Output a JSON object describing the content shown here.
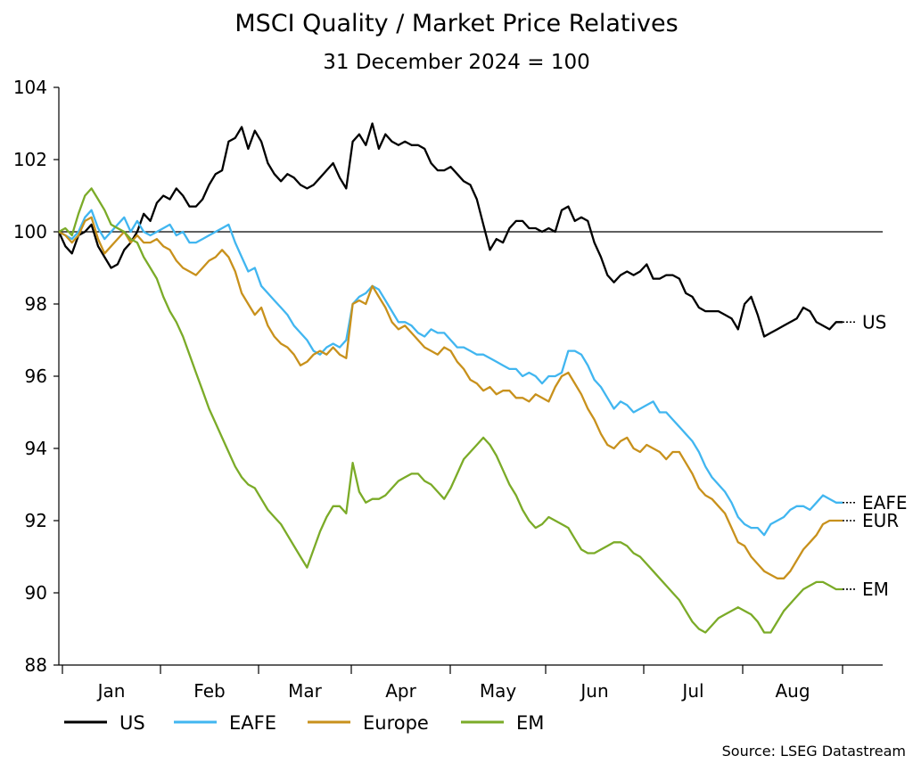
{
  "chart_data": {
    "type": "line",
    "title": "MSCI Quality / Market Price Relatives",
    "subtitle": "31 December 2024 = 100",
    "xlabel": "",
    "ylabel": "",
    "ylim": [
      88,
      104
    ],
    "yticks": [
      "88",
      "90",
      "92",
      "94",
      "96",
      "98",
      "100",
      "102",
      "104"
    ],
    "reference_line": 100,
    "months": [
      "Jan",
      "Feb",
      "Mar",
      "Apr",
      "May",
      "Jun",
      "Jul",
      "Aug"
    ],
    "legend_placement": "bottom",
    "source": "Source: LSEG Datastream",
    "series": [
      {
        "name": "US",
        "end_label": "US",
        "color": "#000000",
        "values": [
          100.0,
          99.6,
          99.4,
          99.9,
          100.0,
          100.2,
          99.6,
          99.3,
          99.0,
          99.1,
          99.5,
          99.7,
          100.0,
          100.5,
          100.3,
          100.8,
          101.0,
          100.9,
          101.2,
          101.0,
          100.7,
          100.7,
          100.9,
          101.3,
          101.6,
          101.7,
          102.5,
          102.6,
          102.9,
          102.3,
          102.8,
          102.5,
          101.9,
          101.6,
          101.4,
          101.6,
          101.5,
          101.3,
          101.2,
          101.3,
          101.5,
          101.7,
          101.9,
          101.5,
          101.2,
          102.5,
          102.7,
          102.4,
          103.0,
          102.3,
          102.7,
          102.5,
          102.4,
          102.5,
          102.4,
          102.4,
          102.3,
          101.9,
          101.7,
          101.7,
          101.8,
          101.6,
          101.4,
          101.3,
          100.9,
          100.2,
          99.5,
          99.8,
          99.7,
          100.1,
          100.3,
          100.3,
          100.1,
          100.1,
          100.0,
          100.1,
          100.0,
          100.6,
          100.7,
          100.3,
          100.4,
          100.3,
          99.7,
          99.3,
          98.8,
          98.6,
          98.8,
          98.9,
          98.8,
          98.9,
          99.1,
          98.7,
          98.7,
          98.8,
          98.8,
          98.7,
          98.3,
          98.2,
          97.9,
          97.8,
          97.8,
          97.8,
          97.7,
          97.6,
          97.3,
          98.0,
          98.2,
          97.7,
          97.1,
          97.2,
          97.3,
          97.4,
          97.5,
          97.6,
          97.9,
          97.8,
          97.5,
          97.4,
          97.3,
          97.5,
          97.5
        ]
      },
      {
        "name": "EAFE",
        "end_label": "EAFE",
        "color": "#41b6f0",
        "values": [
          100.0,
          99.9,
          99.8,
          100.0,
          100.4,
          100.6,
          100.1,
          99.8,
          100.0,
          100.2,
          100.4,
          100.0,
          100.3,
          100.0,
          99.9,
          100.0,
          100.1,
          100.2,
          99.9,
          100.0,
          99.7,
          99.7,
          99.8,
          99.9,
          100.0,
          100.1,
          100.2,
          99.7,
          99.3,
          98.9,
          99.0,
          98.5,
          98.3,
          98.1,
          97.9,
          97.7,
          97.4,
          97.2,
          97.0,
          96.7,
          96.6,
          96.8,
          96.9,
          96.8,
          97.0,
          98.0,
          98.2,
          98.3,
          98.5,
          98.4,
          98.1,
          97.8,
          97.5,
          97.5,
          97.4,
          97.2,
          97.1,
          97.3,
          97.2,
          97.2,
          97.0,
          96.8,
          96.8,
          96.7,
          96.6,
          96.6,
          96.5,
          96.4,
          96.3,
          96.2,
          96.2,
          96.0,
          96.1,
          96.0,
          95.8,
          96.0,
          96.0,
          96.1,
          96.7,
          96.7,
          96.6,
          96.3,
          95.9,
          95.7,
          95.4,
          95.1,
          95.3,
          95.2,
          95.0,
          95.1,
          95.2,
          95.3,
          95.0,
          95.0,
          94.8,
          94.6,
          94.4,
          94.2,
          93.9,
          93.5,
          93.2,
          93.0,
          92.8,
          92.5,
          92.1,
          91.9,
          91.8,
          91.8,
          91.6,
          91.9,
          92.0,
          92.1,
          92.3,
          92.4,
          92.4,
          92.3,
          92.5,
          92.7,
          92.6,
          92.5,
          92.5
        ]
      },
      {
        "name": "Europe",
        "end_label": "EUR",
        "color": "#c8911c",
        "values": [
          100.0,
          99.9,
          99.7,
          99.9,
          100.3,
          100.4,
          99.8,
          99.4,
          99.6,
          99.8,
          100.0,
          99.7,
          99.9,
          99.7,
          99.7,
          99.8,
          99.6,
          99.5,
          99.2,
          99.0,
          98.9,
          98.8,
          99.0,
          99.2,
          99.3,
          99.5,
          99.3,
          98.9,
          98.3,
          98.0,
          97.7,
          97.9,
          97.4,
          97.1,
          96.9,
          96.8,
          96.6,
          96.3,
          96.4,
          96.6,
          96.7,
          96.6,
          96.8,
          96.6,
          96.5,
          98.0,
          98.1,
          98.0,
          98.5,
          98.2,
          97.9,
          97.5,
          97.3,
          97.4,
          97.2,
          97.0,
          96.8,
          96.7,
          96.6,
          96.8,
          96.7,
          96.4,
          96.2,
          95.9,
          95.8,
          95.6,
          95.7,
          95.5,
          95.6,
          95.6,
          95.4,
          95.4,
          95.3,
          95.5,
          95.4,
          95.3,
          95.7,
          96.0,
          96.1,
          95.8,
          95.5,
          95.1,
          94.8,
          94.4,
          94.1,
          94.0,
          94.2,
          94.3,
          94.0,
          93.9,
          94.1,
          94.0,
          93.9,
          93.7,
          93.9,
          93.9,
          93.6,
          93.3,
          92.9,
          92.7,
          92.6,
          92.4,
          92.2,
          91.8,
          91.4,
          91.3,
          91.0,
          90.8,
          90.6,
          90.5,
          90.4,
          90.4,
          90.6,
          90.9,
          91.2,
          91.4,
          91.6,
          91.9,
          92.0,
          92.0,
          92.0
        ]
      },
      {
        "name": "EM",
        "end_label": "EM",
        "color": "#7bab28",
        "values": [
          100.0,
          100.1,
          99.9,
          100.5,
          101.0,
          101.2,
          100.9,
          100.6,
          100.2,
          100.1,
          100.0,
          99.8,
          99.7,
          99.3,
          99.0,
          98.7,
          98.2,
          97.8,
          97.5,
          97.1,
          96.6,
          96.1,
          95.6,
          95.1,
          94.7,
          94.3,
          93.9,
          93.5,
          93.2,
          93.0,
          92.9,
          92.6,
          92.3,
          92.1,
          91.9,
          91.6,
          91.3,
          91.0,
          90.7,
          91.2,
          91.7,
          92.1,
          92.4,
          92.4,
          92.2,
          93.6,
          92.8,
          92.5,
          92.6,
          92.6,
          92.7,
          92.9,
          93.1,
          93.2,
          93.3,
          93.3,
          93.1,
          93.0,
          92.8,
          92.6,
          92.9,
          93.3,
          93.7,
          93.9,
          94.1,
          94.3,
          94.1,
          93.8,
          93.4,
          93.0,
          92.7,
          92.3,
          92.0,
          91.8,
          91.9,
          92.1,
          92.0,
          91.9,
          91.8,
          91.5,
          91.2,
          91.1,
          91.1,
          91.2,
          91.3,
          91.4,
          91.4,
          91.3,
          91.1,
          91.0,
          90.8,
          90.6,
          90.4,
          90.2,
          90.0,
          89.8,
          89.5,
          89.2,
          89.0,
          88.9,
          89.1,
          89.3,
          89.4,
          89.5,
          89.6,
          89.5,
          89.4,
          89.2,
          88.9,
          88.9,
          89.2,
          89.5,
          89.7,
          89.9,
          90.1,
          90.2,
          90.3,
          90.3,
          90.2,
          90.1,
          90.1
        ]
      }
    ]
  }
}
